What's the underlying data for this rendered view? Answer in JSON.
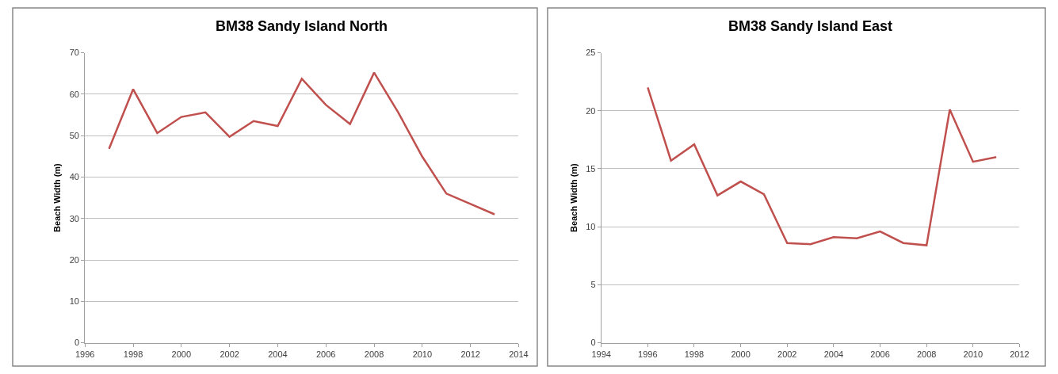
{
  "chart_data": [
    {
      "type": "line",
      "title": "BM38 Sandy Island North",
      "ylabel": "Beach Width (m)",
      "x": [
        1997,
        1998,
        1999,
        2000,
        2001,
        2002,
        2003,
        2004,
        2005,
        2006,
        2007,
        2008,
        2009,
        2010,
        2011,
        2012,
        2013
      ],
      "series": [
        {
          "color": "#c0504d",
          "values": [
            46.8,
            61.2,
            50.6,
            54.5,
            55.6,
            49.7,
            53.5,
            52.3,
            63.7,
            57.4,
            52.8,
            65.2,
            55.6,
            44.9,
            36.0,
            33.5,
            31.0
          ]
        }
      ],
      "xlim": [
        1996,
        2014
      ],
      "xticks": [
        1996,
        1998,
        2000,
        2002,
        2004,
        2006,
        2008,
        2010,
        2012,
        2014
      ],
      "ylim": [
        0,
        70
      ],
      "yticks": [
        0,
        10,
        20,
        30,
        40,
        50,
        60,
        70
      ],
      "grid": "y",
      "marker": "none",
      "line_style": "solid"
    },
    {
      "type": "line",
      "title": "BM38 Sandy Island East",
      "ylabel": "Beach Width (m)",
      "x": [
        1996,
        1997,
        1998,
        1999,
        2000,
        2001,
        2002,
        2003,
        2004,
        2005,
        2006,
        2007,
        2008,
        2009,
        2010,
        2011
      ],
      "series": [
        {
          "color": "#c0504d",
          "values": [
            22.0,
            15.7,
            17.1,
            12.7,
            13.9,
            12.8,
            8.6,
            8.5,
            9.1,
            9.0,
            9.6,
            8.6,
            8.4,
            20.1,
            15.6,
            16.0
          ]
        }
      ],
      "xlim": [
        1994,
        2012
      ],
      "xticks": [
        1994,
        1996,
        1998,
        2000,
        2002,
        2004,
        2006,
        2008,
        2010,
        2012
      ],
      "ylim": [
        0,
        25
      ],
      "yticks": [
        0,
        5,
        10,
        15,
        20,
        25
      ],
      "grid": "y",
      "marker": "none",
      "line_style": "solid"
    }
  ]
}
